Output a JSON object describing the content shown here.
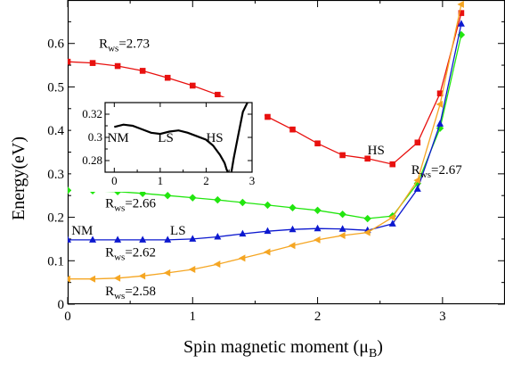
{
  "chart_data": {
    "type": "line",
    "xlabel": "Spin magnetic moment (μ",
    "xlabel_sub": "B",
    "xlabel_close": ")",
    "ylabel": "Energy(eV)",
    "xlim": [
      0,
      3.5
    ],
    "ylim": [
      0,
      0.7
    ],
    "xticks": [
      "0",
      "1",
      "2",
      "3"
    ],
    "yticks": [
      "0",
      "0.1",
      "0.2",
      "0.3",
      "0.4",
      "0.5",
      "0.6"
    ],
    "colors": {
      "rws_273": "#e8110f",
      "rws_266": "#22e60f",
      "rws_262": "#0c18cf",
      "rws_258": "#f5a623",
      "inset": "#000000"
    },
    "series": [
      {
        "key": "rws_273",
        "marker": "square",
        "x": [
          0,
          0.2,
          0.4,
          0.6,
          0.8,
          1.0,
          1.2,
          1.4,
          1.6,
          1.8,
          2.0,
          2.2,
          2.4,
          2.6,
          2.8,
          2.98,
          3.15
        ],
        "y": [
          0.558,
          0.555,
          0.548,
          0.537,
          0.521,
          0.503,
          0.482,
          0.458,
          0.431,
          0.402,
          0.37,
          0.343,
          0.335,
          0.322,
          0.372,
          0.485,
          0.67
        ]
      },
      {
        "key": "rws_266",
        "marker": "diamond",
        "x": [
          0,
          0.2,
          0.4,
          0.6,
          0.8,
          1.0,
          1.2,
          1.4,
          1.6,
          1.8,
          2.0,
          2.2,
          2.4,
          2.6,
          2.8,
          2.98,
          3.15
        ],
        "y": [
          0.262,
          0.261,
          0.259,
          0.255,
          0.25,
          0.245,
          0.24,
          0.234,
          0.228,
          0.222,
          0.216,
          0.207,
          0.197,
          0.203,
          0.278,
          0.405,
          0.62
        ]
      },
      {
        "key": "rws_262",
        "marker": "triangle-up",
        "x": [
          0,
          0.2,
          0.4,
          0.6,
          0.8,
          1.0,
          1.2,
          1.4,
          1.6,
          1.8,
          2.0,
          2.2,
          2.4,
          2.6,
          2.8,
          2.98,
          3.15
        ],
        "y": [
          0.148,
          0.148,
          0.148,
          0.148,
          0.148,
          0.15,
          0.155,
          0.162,
          0.168,
          0.172,
          0.174,
          0.173,
          0.17,
          0.185,
          0.265,
          0.415,
          0.645
        ]
      },
      {
        "key": "rws_258",
        "marker": "triangle-left",
        "x": [
          0,
          0.2,
          0.4,
          0.6,
          0.8,
          1.0,
          1.2,
          1.4,
          1.6,
          1.8,
          2.0,
          2.2,
          2.4,
          2.6,
          2.8,
          2.98,
          3.15
        ],
        "y": [
          0.058,
          0.058,
          0.06,
          0.065,
          0.072,
          0.08,
          0.092,
          0.106,
          0.12,
          0.135,
          0.148,
          0.158,
          0.165,
          0.2,
          0.285,
          0.46,
          0.69
        ]
      }
    ],
    "annotations": [
      {
        "key": "ann_273",
        "main": "R",
        "sub": "ws",
        "rest": "=2.73",
        "x": 0.25,
        "y": 0.59
      },
      {
        "key": "ann_267",
        "main": "R",
        "sub": "ws",
        "rest": "=2.67",
        "x": 2.75,
        "y": 0.3
      },
      {
        "key": "ann_266",
        "main": "R",
        "sub": "ws",
        "rest": "=2.66",
        "x": 0.3,
        "y": 0.223
      },
      {
        "key": "ann_262",
        "main": "R",
        "sub": "ws",
        "rest": "=2.62",
        "x": 0.3,
        "y": 0.11
      },
      {
        "key": "ann_258",
        "main": "R",
        "sub": "ws",
        "rest": "=2.58",
        "x": 0.3,
        "y": 0.021
      },
      {
        "key": "ann_hs",
        "main": "HS",
        "sub": "",
        "rest": "",
        "x": 2.4,
        "y": 0.345
      },
      {
        "key": "ann_nm",
        "main": "NM",
        "sub": "",
        "rest": "",
        "x": 0.03,
        "y": 0.16
      },
      {
        "key": "ann_ls",
        "main": "LS",
        "sub": "",
        "rest": "",
        "x": 0.82,
        "y": 0.16
      }
    ],
    "inset": {
      "xlim": [
        -0.2,
        3.0
      ],
      "ylim": [
        0.27,
        0.33
      ],
      "xticks": [
        "0",
        "1",
        "2",
        "3"
      ],
      "yticks": [
        "0.28",
        "0.3",
        "0.32"
      ],
      "x": [
        0.0,
        0.2,
        0.4,
        0.6,
        0.8,
        1.0,
        1.2,
        1.4,
        1.6,
        1.8,
        2.0,
        2.15,
        2.3,
        2.4,
        2.45,
        2.5,
        2.55,
        2.6,
        2.7,
        2.8,
        2.9
      ],
      "y": [
        0.309,
        0.311,
        0.31,
        0.307,
        0.304,
        0.303,
        0.305,
        0.306,
        0.304,
        0.301,
        0.298,
        0.293,
        0.285,
        0.278,
        0.272,
        0.268,
        0.27,
        0.282,
        0.302,
        0.322,
        0.33
      ],
      "labels": [
        {
          "key": "inset_nm",
          "text": "NM",
          "x": -0.15,
          "y": 0.3
        },
        {
          "key": "inset_ls",
          "text": "LS",
          "x": 0.95,
          "y": 0.3
        },
        {
          "key": "inset_hs",
          "text": "HS",
          "x": 2.0,
          "y": 0.3
        }
      ]
    }
  }
}
